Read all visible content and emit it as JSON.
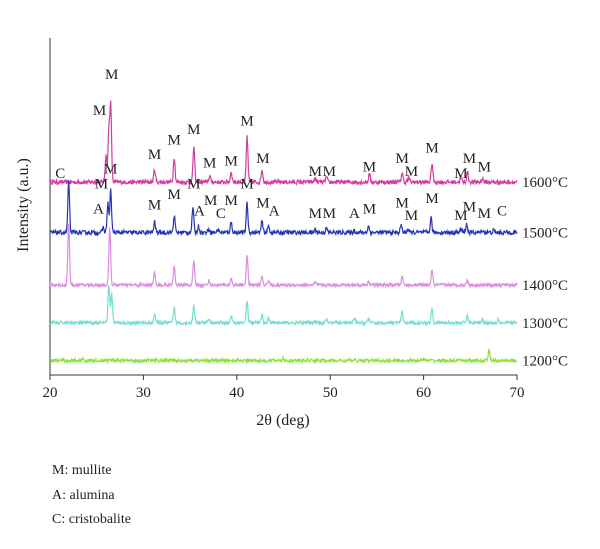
{
  "chart_data": {
    "type": "line",
    "xlabel": "2θ (deg)",
    "ylabel": "Intensity (a.u.)",
    "xlim": [
      20,
      70
    ],
    "xticks": [
      20,
      30,
      40,
      50,
      60,
      70
    ],
    "grid": false,
    "series": [
      {
        "name": "1600°C",
        "color": "#d43ca0",
        "baseline": 4.45,
        "noise": 0.05,
        "peaks": [
          [
            26.0,
            0.65
          ],
          [
            26.3,
            1.2
          ],
          [
            26.5,
            1.8
          ],
          [
            31.2,
            0.3
          ],
          [
            33.3,
            0.6
          ],
          [
            35.4,
            0.85
          ],
          [
            37.1,
            0.15
          ],
          [
            39.4,
            0.25
          ],
          [
            41.1,
            1.1
          ],
          [
            42.7,
            0.3
          ],
          [
            48.4,
            0.1
          ],
          [
            49.6,
            0.12
          ],
          [
            54.2,
            0.2
          ],
          [
            57.7,
            0.22
          ],
          [
            58.4,
            0.1
          ],
          [
            60.9,
            0.45
          ],
          [
            64.0,
            0.1
          ],
          [
            64.7,
            0.25
          ],
          [
            66.3,
            0.08
          ]
        ]
      },
      {
        "name": "1500°C",
        "color": "#2336b8",
        "baseline": 3.25,
        "noise": 0.05,
        "peaks": [
          [
            22.0,
            1.2
          ],
          [
            25.7,
            0.12
          ],
          [
            26.2,
            0.7
          ],
          [
            26.5,
            1.0
          ],
          [
            31.2,
            0.25
          ],
          [
            33.3,
            0.4
          ],
          [
            35.3,
            0.6
          ],
          [
            35.9,
            0.15
          ],
          [
            37.0,
            0.1
          ],
          [
            38.0,
            0.08
          ],
          [
            39.4,
            0.25
          ],
          [
            41.1,
            0.7
          ],
          [
            42.7,
            0.25
          ],
          [
            43.4,
            0.15
          ],
          [
            48.4,
            0.08
          ],
          [
            49.6,
            0.1
          ],
          [
            52.6,
            0.05
          ],
          [
            54.1,
            0.15
          ],
          [
            57.6,
            0.18
          ],
          [
            58.3,
            0.08
          ],
          [
            60.8,
            0.35
          ],
          [
            64.0,
            0.08
          ],
          [
            64.6,
            0.2
          ],
          [
            66.3,
            0.06
          ],
          [
            67.5,
            0.05
          ]
        ]
      },
      {
        "name": "1400°C",
        "color": "#dc8ee0",
        "baseline": 2.0,
        "noise": 0.04,
        "peaks": [
          [
            22.0,
            1.5
          ],
          [
            26.4,
            1.4
          ],
          [
            31.2,
            0.3
          ],
          [
            33.3,
            0.45
          ],
          [
            35.4,
            0.55
          ],
          [
            37.0,
            0.1
          ],
          [
            39.4,
            0.15
          ],
          [
            41.1,
            0.7
          ],
          [
            42.7,
            0.2
          ],
          [
            43.4,
            0.12
          ],
          [
            48.4,
            0.05
          ],
          [
            54.1,
            0.1
          ],
          [
            57.7,
            0.2
          ],
          [
            60.9,
            0.35
          ],
          [
            64.7,
            0.12
          ]
        ]
      },
      {
        "name": "1300°C",
        "color": "#72e0cc",
        "baseline": 1.1,
        "noise": 0.04,
        "peaks": [
          [
            26.3,
            0.9
          ],
          [
            26.6,
            0.7
          ],
          [
            31.2,
            0.22
          ],
          [
            33.3,
            0.35
          ],
          [
            35.4,
            0.4
          ],
          [
            37.0,
            0.08
          ],
          [
            39.4,
            0.15
          ],
          [
            41.1,
            0.55
          ],
          [
            42.7,
            0.2
          ],
          [
            43.4,
            0.12
          ],
          [
            48.4,
            0.05
          ],
          [
            49.6,
            0.07
          ],
          [
            52.6,
            0.1
          ],
          [
            54.1,
            0.1
          ],
          [
            57.7,
            0.25
          ],
          [
            60.9,
            0.35
          ],
          [
            64.7,
            0.18
          ],
          [
            66.3,
            0.08
          ],
          [
            68.0,
            0.1
          ]
        ]
      },
      {
        "name": "1200°C",
        "color": "#8ee23a",
        "baseline": 0.2,
        "noise": 0.04,
        "peaks": [
          [
            23.5,
            0.06
          ],
          [
            26.5,
            0.04
          ],
          [
            45.0,
            0.05
          ],
          [
            60.0,
            0.05
          ],
          [
            67.0,
            0.25
          ]
        ]
      }
    ],
    "annotations": [
      {
        "text": "M",
        "x": 25.3,
        "y": 6.05
      },
      {
        "text": "M",
        "x": 26.6,
        "y": 6.9
      },
      {
        "text": "M",
        "x": 31.2,
        "y": 5.0
      },
      {
        "text": "M",
        "x": 33.3,
        "y": 5.35
      },
      {
        "text": "M",
        "x": 35.4,
        "y": 5.6
      },
      {
        "text": "M",
        "x": 37.1,
        "y": 4.8
      },
      {
        "text": "M",
        "x": 39.4,
        "y": 4.85
      },
      {
        "text": "M",
        "x": 41.1,
        "y": 5.8
      },
      {
        "text": "M",
        "x": 42.8,
        "y": 4.9
      },
      {
        "text": "M",
        "x": 48.4,
        "y": 4.6
      },
      {
        "text": "M",
        "x": 49.9,
        "y": 4.6
      },
      {
        "text": "M",
        "x": 54.2,
        "y": 4.7
      },
      {
        "text": "M",
        "x": 57.7,
        "y": 4.9
      },
      {
        "text": "M",
        "x": 58.7,
        "y": 4.6
      },
      {
        "text": "M",
        "x": 60.9,
        "y": 5.15
      },
      {
        "text": "M",
        "x": 64.0,
        "y": 4.55
      },
      {
        "text": "M",
        "x": 64.9,
        "y": 4.9
      },
      {
        "text": "M",
        "x": 66.5,
        "y": 4.7
      },
      {
        "text": "C",
        "x": 21.1,
        "y": 4.55
      },
      {
        "text": "M",
        "x": 26.5,
        "y": 4.65
      },
      {
        "text": "M",
        "x": 25.5,
        "y": 4.3
      },
      {
        "text": "A",
        "x": 25.2,
        "y": 3.7
      },
      {
        "text": "M",
        "x": 31.2,
        "y": 3.8
      },
      {
        "text": "M",
        "x": 33.3,
        "y": 4.05
      },
      {
        "text": "M",
        "x": 35.4,
        "y": 4.3
      },
      {
        "text": "A",
        "x": 36.0,
        "y": 3.65
      },
      {
        "text": "M",
        "x": 37.2,
        "y": 3.9
      },
      {
        "text": "C",
        "x": 38.3,
        "y": 3.6
      },
      {
        "text": "M",
        "x": 39.4,
        "y": 3.9
      },
      {
        "text": "M",
        "x": 41.1,
        "y": 4.3
      },
      {
        "text": "M",
        "x": 42.8,
        "y": 3.85
      },
      {
        "text": "A",
        "x": 44.0,
        "y": 3.65
      },
      {
        "text": "M",
        "x": 48.4,
        "y": 3.6
      },
      {
        "text": "M",
        "x": 49.9,
        "y": 3.6
      },
      {
        "text": "A",
        "x": 52.6,
        "y": 3.6
      },
      {
        "text": "M",
        "x": 54.2,
        "y": 3.7
      },
      {
        "text": "M",
        "x": 57.7,
        "y": 3.85
      },
      {
        "text": "M",
        "x": 58.7,
        "y": 3.55
      },
      {
        "text": "M",
        "x": 60.9,
        "y": 3.95
      },
      {
        "text": "M",
        "x": 64.0,
        "y": 3.55
      },
      {
        "text": "M",
        "x": 64.9,
        "y": 3.75
      },
      {
        "text": "M",
        "x": 66.5,
        "y": 3.6
      },
      {
        "text": "C",
        "x": 68.4,
        "y": 3.65
      }
    ],
    "legend": [
      "M: mullite",
      "A: alumina",
      "C: cristobalite"
    ]
  }
}
